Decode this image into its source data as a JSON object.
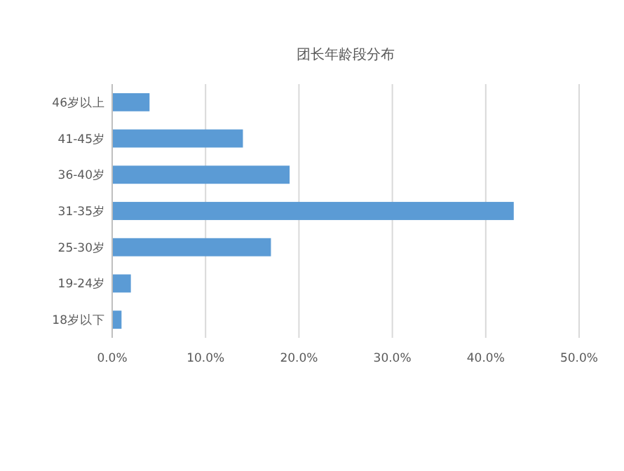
{
  "chart_data": {
    "type": "bar",
    "orientation": "horizontal",
    "title": "团长年龄段分布",
    "categories": [
      "46岁以上",
      "41-45岁",
      "36-40岁",
      "31-35岁",
      "25-30岁",
      "19-24岁",
      "18岁以下"
    ],
    "values": [
      4,
      14,
      19,
      43,
      17,
      2,
      1
    ],
    "color": "#5b9bd5",
    "xlim": [
      0,
      50
    ],
    "xticks": [
      {
        "value": 0,
        "label": "0.0%"
      },
      {
        "value": 10,
        "label": "10.0%"
      },
      {
        "value": 20,
        "label": "20.0%"
      },
      {
        "value": 30,
        "label": "30.0%"
      },
      {
        "value": 40,
        "label": "40.0%"
      },
      {
        "value": 50,
        "label": "50.0%"
      }
    ],
    "grid": "x"
  }
}
